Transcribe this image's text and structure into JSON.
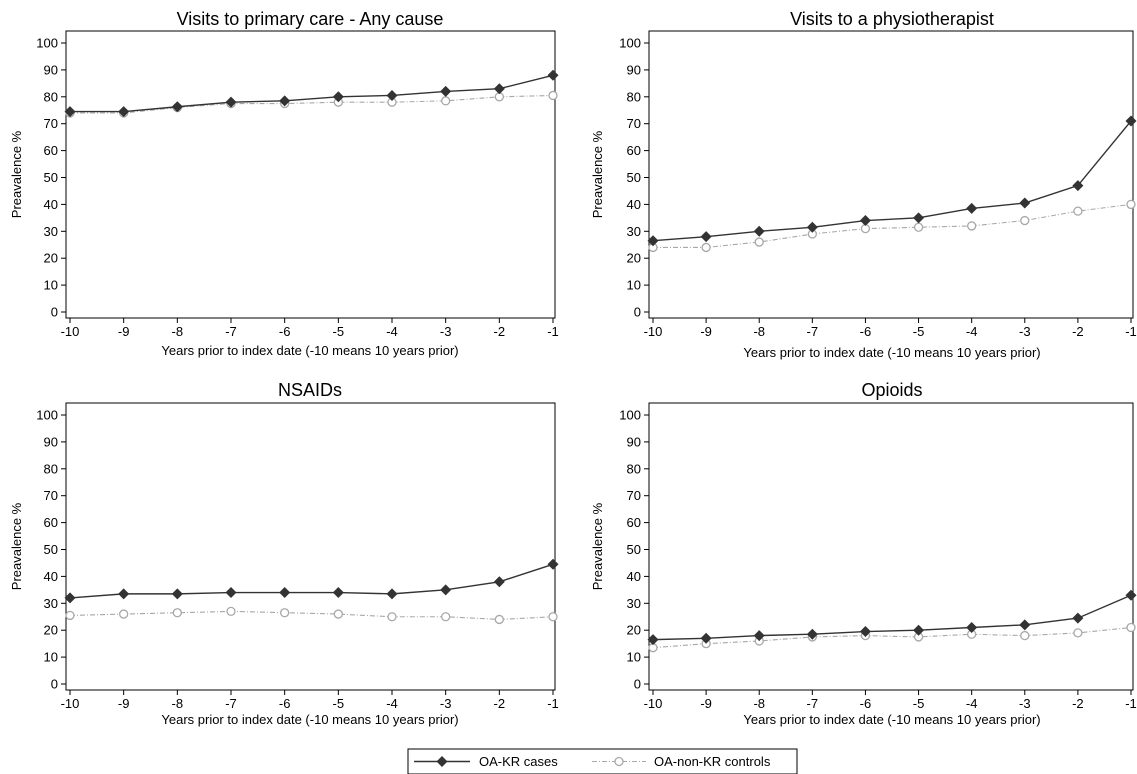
{
  "legend": {
    "series_a": "OA-KR cases",
    "series_b": "OA-non-KR controls"
  },
  "colors": {
    "cases": "#333333",
    "controls": "#a8a8a8"
  },
  "chart_data": [
    {
      "type": "line",
      "title": "Visits to primary care  - Any cause",
      "xlabel": "Years prior to index date  (-10 means 10 years prior)",
      "ylabel": "Preavalence %",
      "x": [
        -10,
        -9,
        -8,
        -7,
        -6,
        -5,
        -4,
        -3,
        -2,
        -1
      ],
      "xticklabels": [
        "-10",
        "-9",
        "-8",
        "-7",
        "-6",
        "-5",
        "-4",
        "-3",
        "-2",
        "-1"
      ],
      "ylim": [
        0,
        100
      ],
      "yticks": [
        0,
        10,
        20,
        30,
        40,
        50,
        60,
        70,
        80,
        90,
        100
      ],
      "series": [
        {
          "name": "OA-KR cases",
          "values": [
            74.5,
            74.5,
            76.3,
            78,
            78.5,
            80,
            80.5,
            82,
            83,
            88
          ]
        },
        {
          "name": "OA-non-KR controls",
          "values": [
            74,
            74,
            76,
            77.5,
            77.5,
            78,
            78,
            78.5,
            80,
            80.5
          ]
        }
      ]
    },
    {
      "type": "line",
      "title": "Visits to a physiotherapist",
      "xlabel": "Years prior to index date  (-10 means 10 years prior)",
      "ylabel": "Preavalence %",
      "x": [
        -10,
        -9,
        -8,
        -7,
        -6,
        -5,
        -4,
        -3,
        -2,
        -1
      ],
      "xticklabels": [
        "-10",
        "-9",
        "-8",
        "-7",
        "-6",
        "-5",
        "-4",
        "-3",
        "-2",
        "-1"
      ],
      "ylim": [
        0,
        100
      ],
      "yticks": [
        0,
        10,
        20,
        30,
        40,
        50,
        60,
        70,
        80,
        90,
        100
      ],
      "series": [
        {
          "name": "OA-KR cases",
          "values": [
            26.5,
            28,
            30,
            31.5,
            34,
            35,
            38.5,
            40.5,
            47,
            71
          ]
        },
        {
          "name": "OA-non-KR controls",
          "values": [
            24,
            24,
            26,
            29,
            31,
            31.5,
            32,
            34,
            37.5,
            40
          ]
        }
      ]
    },
    {
      "type": "line",
      "title": "NSAIDs",
      "xlabel": "Years prior to index date  (-10 means 10 years prior)",
      "ylabel": "Preavalence %",
      "x": [
        -10,
        -9,
        -8,
        -7,
        -6,
        -5,
        -4,
        -3,
        -2,
        -1
      ],
      "xticklabels": [
        "-10",
        "-9",
        "-8",
        "-7",
        "-6",
        "-5",
        "-4",
        "-3",
        "-2",
        "-1"
      ],
      "ylim": [
        0,
        100
      ],
      "yticks": [
        0,
        10,
        20,
        30,
        40,
        50,
        60,
        70,
        80,
        90,
        100
      ],
      "series": [
        {
          "name": "OA-KR cases",
          "values": [
            32,
            33.5,
            33.5,
            34,
            34,
            34,
            33.5,
            35,
            38,
            44.5
          ]
        },
        {
          "name": "OA-non-KR controls",
          "values": [
            25.5,
            26,
            26.5,
            27,
            26.5,
            26,
            25,
            25,
            24,
            25
          ]
        }
      ]
    },
    {
      "type": "line",
      "title": "Opioids",
      "xlabel": "Years prior to index date  (-10 means 10 years prior)",
      "ylabel": "Preavalence %",
      "x": [
        -10,
        -9,
        -8,
        -7,
        -6,
        -5,
        -4,
        -3,
        -2,
        -1
      ],
      "xticklabels": [
        "-10",
        "-9",
        "-8",
        "-7",
        "-6",
        "-5",
        "-4",
        "-3",
        "-2",
        "-1"
      ],
      "ylim": [
        0,
        100
      ],
      "yticks": [
        0,
        10,
        20,
        30,
        40,
        50,
        60,
        70,
        80,
        90,
        100
      ],
      "series": [
        {
          "name": "OA-KR cases",
          "values": [
            16.5,
            17,
            18,
            18.5,
            19.5,
            20,
            21,
            22,
            24.5,
            33
          ]
        },
        {
          "name": "OA-non-KR controls",
          "values": [
            13.5,
            15,
            16,
            17.5,
            18,
            17.5,
            18.5,
            18,
            19,
            21
          ]
        }
      ]
    }
  ]
}
